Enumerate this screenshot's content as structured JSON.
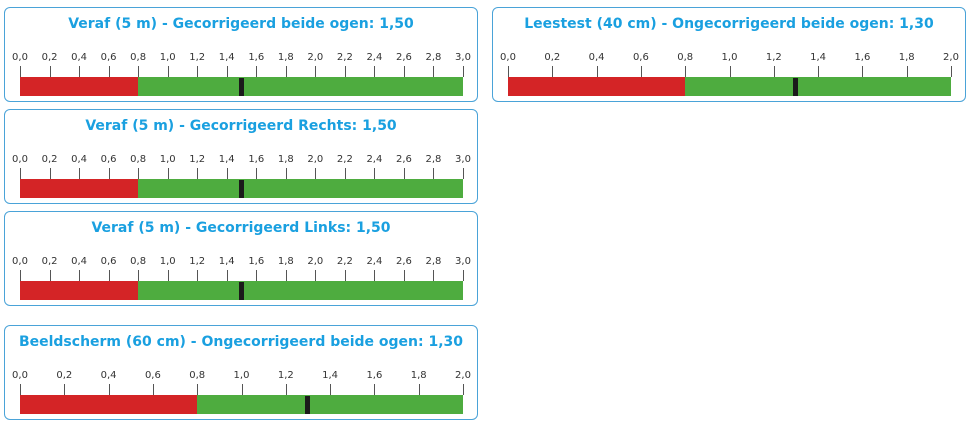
{
  "colors": {
    "title": "#1aa0e0",
    "border": "#4aa3d8",
    "red_zone": "#d42426",
    "green_zone": "#4eac3f",
    "marker": "#1b1b1b"
  },
  "scales": [
    {
      "title": "Veraf (5 m) - Gecorrigeerd beide ogen: 1,50",
      "ticks": [
        "0,0",
        "0,2",
        "0,4",
        "0,6",
        "0,8",
        "1,0",
        "1,2",
        "1,4",
        "1,6",
        "1,8",
        "2,0",
        "2,2",
        "2,4",
        "2,6",
        "2,8",
        "3,0"
      ],
      "min": 0,
      "max": 3.0,
      "threshold": 0.8,
      "value": 1.5
    },
    {
      "title": "Veraf (5 m) - Gecorrigeerd Rechts: 1,50",
      "ticks": [
        "0,0",
        "0,2",
        "0,4",
        "0,6",
        "0,8",
        "1,0",
        "1,2",
        "1,4",
        "1,6",
        "1,8",
        "2,0",
        "2,2",
        "2,4",
        "2,6",
        "2,8",
        "3,0"
      ],
      "min": 0,
      "max": 3.0,
      "threshold": 0.8,
      "value": 1.5
    },
    {
      "title": "Veraf (5 m) - Gecorrigeerd Links: 1,50",
      "ticks": [
        "0,0",
        "0,2",
        "0,4",
        "0,6",
        "0,8",
        "1,0",
        "1,2",
        "1,4",
        "1,6",
        "1,8",
        "2,0",
        "2,2",
        "2,4",
        "2,6",
        "2,8",
        "3,0"
      ],
      "min": 0,
      "max": 3.0,
      "threshold": 0.8,
      "value": 1.5
    },
    {
      "title": "Beeldscherm (60 cm) - Ongecorrigeerd beide ogen: 1,30",
      "ticks": [
        "0,0",
        "0,2",
        "0,4",
        "0,6",
        "0,8",
        "1,0",
        "1,2",
        "1,4",
        "1,6",
        "1,8",
        "2,0"
      ],
      "min": 0,
      "max": 2.0,
      "threshold": 0.8,
      "value": 1.3
    },
    {
      "title": "Leestest (40 cm) - Ongecorrigeerd beide ogen: 1,30",
      "ticks": [
        "0,0",
        "0,2",
        "0,4",
        "0,6",
        "0,8",
        "1,0",
        "1,2",
        "1,4",
        "1,6",
        "1,8",
        "2,0"
      ],
      "min": 0,
      "max": 2.0,
      "threshold": 0.8,
      "value": 1.3
    }
  ]
}
